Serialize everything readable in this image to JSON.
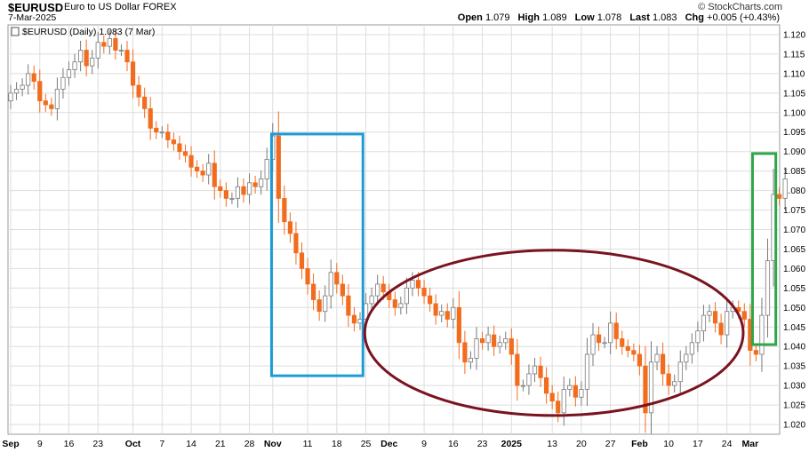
{
  "header": {
    "symbol": "$EURUSD",
    "description": "Euro to US Dollar  FOREX",
    "date": "7-Mar-2025",
    "brand": "© StockCharts.com",
    "open_label": "Open",
    "open": "1.079",
    "high_label": "High",
    "high": "1.089",
    "low_label": "Low",
    "low": "1.078",
    "last_label": "Last",
    "last": "1.083",
    "chg_label": "Chg",
    "chg": "+0.005 (+0.43%)"
  },
  "chart_data": {
    "type": "candlestick",
    "legend": "$EURUSD (Daily) 1.083 (7 Mar)",
    "ylim": [
      1.0175,
      1.1225
    ],
    "yticks": [
      "1.020",
      "1.025",
      "1.030",
      "1.035",
      "1.040",
      "1.045",
      "1.050",
      "1.055",
      "1.060",
      "1.065",
      "1.070",
      "1.075",
      "1.080",
      "1.085",
      "1.090",
      "1.095",
      "1.100",
      "1.105",
      "1.110",
      "1.115",
      "1.120"
    ],
    "xlabels": [
      {
        "label": "Sep",
        "i": 0,
        "bold": true
      },
      {
        "label": "9",
        "i": 5
      },
      {
        "label": "16",
        "i": 10
      },
      {
        "label": "23",
        "i": 15
      },
      {
        "label": "Oct",
        "i": 21,
        "bold": true
      },
      {
        "label": "7",
        "i": 26
      },
      {
        "label": "14",
        "i": 31
      },
      {
        "label": "21",
        "i": 36
      },
      {
        "label": "28",
        "i": 41
      },
      {
        "label": "Nov",
        "i": 45,
        "bold": true
      },
      {
        "label": "11",
        "i": 51
      },
      {
        "label": "18",
        "i": 56
      },
      {
        "label": "25",
        "i": 61
      },
      {
        "label": "Dec",
        "i": 65,
        "bold": true
      },
      {
        "label": "9",
        "i": 71
      },
      {
        "label": "16",
        "i": 76
      },
      {
        "label": "23",
        "i": 81
      },
      {
        "label": "2025",
        "i": 86,
        "bold": true
      },
      {
        "label": "13",
        "i": 93
      },
      {
        "label": "20",
        "i": 98
      },
      {
        "label": "27",
        "i": 103
      },
      {
        "label": "Feb",
        "i": 108,
        "bold": true
      },
      {
        "label": "10",
        "i": 113
      },
      {
        "label": "17",
        "i": 118
      },
      {
        "label": "24",
        "i": 123
      },
      {
        "label": "Mar",
        "i": 127,
        "bold": true
      }
    ],
    "close": [
      1.105,
      1.106,
      1.107,
      1.11,
      1.108,
      1.103,
      1.102,
      1.101,
      1.106,
      1.109,
      1.111,
      1.113,
      1.116,
      1.112,
      1.114,
      1.118,
      1.117,
      1.119,
      1.116,
      1.116,
      1.113,
      1.107,
      1.104,
      1.101,
      1.096,
      1.095,
      1.095,
      1.093,
      1.092,
      1.09,
      1.089,
      1.086,
      1.085,
      1.084,
      1.087,
      1.081,
      1.08,
      1.078,
      1.078,
      1.081,
      1.079,
      1.082,
      1.081,
      1.083,
      1.088,
      1.094,
      1.078,
      1.072,
      1.069,
      1.064,
      1.06,
      1.056,
      1.052,
      1.049,
      1.053,
      1.059,
      1.056,
      1.053,
      1.048,
      1.046,
      1.047,
      1.051,
      1.053,
      1.056,
      1.054,
      1.052,
      1.05,
      1.051,
      1.055,
      1.057,
      1.055,
      1.053,
      1.051,
      1.048,
      1.049,
      1.047,
      1.05,
      1.041,
      1.036,
      1.037,
      1.042,
      1.041,
      1.043,
      1.04,
      1.041,
      1.042,
      1.038,
      1.03,
      1.03,
      1.033,
      1.035,
      1.032,
      1.028,
      1.026,
      1.023,
      1.029,
      1.03,
      1.027,
      1.029,
      1.038,
      1.043,
      1.041,
      1.041,
      1.046,
      1.042,
      1.04,
      1.039,
      1.038,
      1.035,
      1.023,
      1.036,
      1.038,
      1.033,
      1.03,
      1.031,
      1.036,
      1.038,
      1.041,
      1.044,
      1.048,
      1.049,
      1.046,
      1.043,
      1.049,
      1.05,
      1.049,
      1.047,
      1.039,
      1.038,
      1.048,
      1.062,
      1.079,
      1.078,
      1.083
    ],
    "series": [
      {
        "name": "$EURUSD"
      }
    ],
    "annotations": [
      {
        "type": "rect",
        "color": "#1e9bd7",
        "i0": 44.8,
        "i1": 60.5,
        "y0": 1.0945,
        "y1": 1.0325
      },
      {
        "type": "ellipse",
        "color": "#7a1320",
        "i0": 60.8,
        "i1": 125.8,
        "y0": 1.0647,
        "y1": 1.0223
      },
      {
        "type": "rect",
        "color": "#2fa64a",
        "i0": 127.4,
        "i1": 131.4,
        "y0": 1.0895,
        "y1": 1.0405
      }
    ],
    "colors": {
      "up": "#ffffff",
      "up_stroke": "#7a7a7a",
      "down": "#f26c1f",
      "grid": "#dddddd"
    }
  }
}
